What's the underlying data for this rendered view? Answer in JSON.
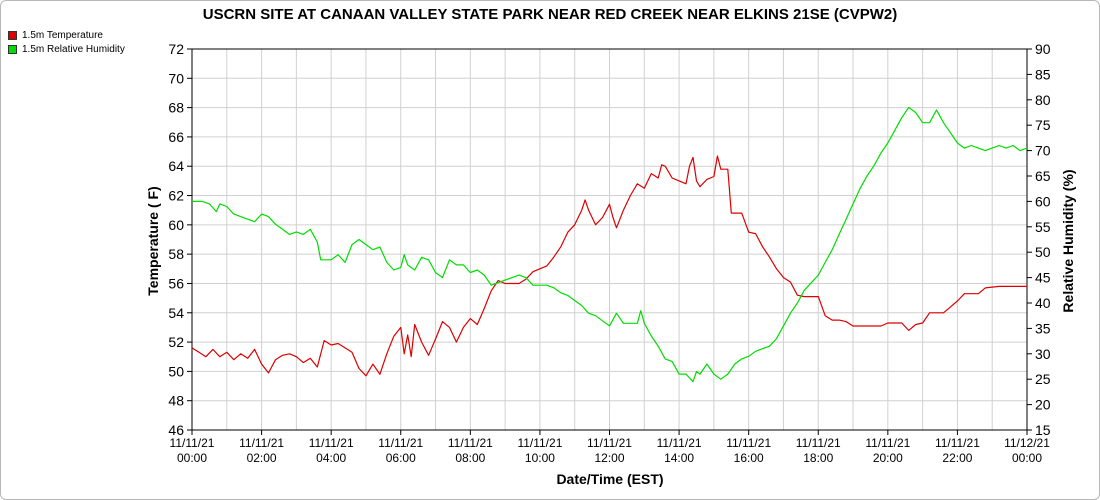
{
  "chart_data": {
    "type": "line",
    "title": "USCRN SITE AT CANAAN VALLEY STATE PARK NEAR RED CREEK NEAR ELKINS 21SE (CVPW2)",
    "xlabel": "Date/Time (EST)",
    "ylabel_left": "Temperature ( F)",
    "ylabel_right": "Relative Humidity (%)",
    "ylim_left": [
      46,
      72
    ],
    "ylim_right": [
      15,
      90
    ],
    "yticks_left": [
      46,
      48,
      50,
      52,
      54,
      56,
      58,
      60,
      62,
      64,
      66,
      68,
      70,
      72
    ],
    "yticks_right": [
      15,
      20,
      25,
      30,
      35,
      40,
      45,
      50,
      55,
      60,
      65,
      70,
      75,
      80,
      85,
      90
    ],
    "xlim_hours": [
      0,
      24
    ],
    "x_ticks": [
      {
        "hour": 0,
        "date": "11/11/21",
        "time": "00:00"
      },
      {
        "hour": 2,
        "date": "11/11/21",
        "time": "02:00"
      },
      {
        "hour": 4,
        "date": "11/11/21",
        "time": "04:00"
      },
      {
        "hour": 6,
        "date": "11/11/21",
        "time": "06:00"
      },
      {
        "hour": 8,
        "date": "11/11/21",
        "time": "08:00"
      },
      {
        "hour": 10,
        "date": "11/11/21",
        "time": "10:00"
      },
      {
        "hour": 12,
        "date": "11/11/21",
        "time": "12:00"
      },
      {
        "hour": 14,
        "date": "11/11/21",
        "time": "14:00"
      },
      {
        "hour": 16,
        "date": "11/11/21",
        "time": "16:00"
      },
      {
        "hour": 18,
        "date": "11/11/21",
        "time": "18:00"
      },
      {
        "hour": 20,
        "date": "11/11/21",
        "time": "20:00"
      },
      {
        "hour": 22,
        "date": "11/11/21",
        "time": "22:00"
      },
      {
        "hour": 24,
        "date": "11/12/21",
        "time": "00:00"
      }
    ],
    "grid": true,
    "legend_position": "top-left",
    "series": [
      {
        "name": "1.5m Temperature",
        "axis": "left",
        "color": "#dd0000",
        "points": [
          [
            0.0,
            51.6
          ],
          [
            0.2,
            51.3
          ],
          [
            0.4,
            51.0
          ],
          [
            0.6,
            51.5
          ],
          [
            0.8,
            51.0
          ],
          [
            1.0,
            51.3
          ],
          [
            1.2,
            50.8
          ],
          [
            1.4,
            51.2
          ],
          [
            1.6,
            50.9
          ],
          [
            1.8,
            51.5
          ],
          [
            2.0,
            50.5
          ],
          [
            2.2,
            49.9
          ],
          [
            2.4,
            50.8
          ],
          [
            2.6,
            51.1
          ],
          [
            2.8,
            51.2
          ],
          [
            3.0,
            51.0
          ],
          [
            3.2,
            50.6
          ],
          [
            3.4,
            50.9
          ],
          [
            3.6,
            50.3
          ],
          [
            3.8,
            52.1
          ],
          [
            4.0,
            51.8
          ],
          [
            4.2,
            51.9
          ],
          [
            4.4,
            51.6
          ],
          [
            4.6,
            51.3
          ],
          [
            4.8,
            50.2
          ],
          [
            5.0,
            49.7
          ],
          [
            5.2,
            50.5
          ],
          [
            5.4,
            49.8
          ],
          [
            5.6,
            51.2
          ],
          [
            5.8,
            52.4
          ],
          [
            6.0,
            53.0
          ],
          [
            6.1,
            51.2
          ],
          [
            6.2,
            52.5
          ],
          [
            6.3,
            51.0
          ],
          [
            6.4,
            53.2
          ],
          [
            6.6,
            52.0
          ],
          [
            6.8,
            51.1
          ],
          [
            7.0,
            52.2
          ],
          [
            7.2,
            53.4
          ],
          [
            7.4,
            53.0
          ],
          [
            7.6,
            52.0
          ],
          [
            7.8,
            53.0
          ],
          [
            8.0,
            53.6
          ],
          [
            8.2,
            53.2
          ],
          [
            8.4,
            54.3
          ],
          [
            8.6,
            55.5
          ],
          [
            8.8,
            56.2
          ],
          [
            9.0,
            56.0
          ],
          [
            9.2,
            56.0
          ],
          [
            9.4,
            56.0
          ],
          [
            9.6,
            56.3
          ],
          [
            9.8,
            56.8
          ],
          [
            10.0,
            57.0
          ],
          [
            10.2,
            57.2
          ],
          [
            10.4,
            57.8
          ],
          [
            10.6,
            58.5
          ],
          [
            10.8,
            59.5
          ],
          [
            11.0,
            60.0
          ],
          [
            11.2,
            61.0
          ],
          [
            11.3,
            61.7
          ],
          [
            11.4,
            61.0
          ],
          [
            11.6,
            60.0
          ],
          [
            11.8,
            60.5
          ],
          [
            12.0,
            61.4
          ],
          [
            12.1,
            60.5
          ],
          [
            12.2,
            59.8
          ],
          [
            12.4,
            61.0
          ],
          [
            12.6,
            62.0
          ],
          [
            12.8,
            62.8
          ],
          [
            13.0,
            62.5
          ],
          [
            13.2,
            63.5
          ],
          [
            13.4,
            63.2
          ],
          [
            13.5,
            64.1
          ],
          [
            13.6,
            64.0
          ],
          [
            13.8,
            63.2
          ],
          [
            14.0,
            63.0
          ],
          [
            14.2,
            62.8
          ],
          [
            14.3,
            64.0
          ],
          [
            14.4,
            64.6
          ],
          [
            14.5,
            63.0
          ],
          [
            14.6,
            62.6
          ],
          [
            14.8,
            63.1
          ],
          [
            15.0,
            63.3
          ],
          [
            15.1,
            64.7
          ],
          [
            15.2,
            63.8
          ],
          [
            15.4,
            63.8
          ],
          [
            15.5,
            60.8
          ],
          [
            15.8,
            60.8
          ],
          [
            16.0,
            59.5
          ],
          [
            16.2,
            59.4
          ],
          [
            16.4,
            58.5
          ],
          [
            16.6,
            57.8
          ],
          [
            16.8,
            57.0
          ],
          [
            17.0,
            56.4
          ],
          [
            17.2,
            56.1
          ],
          [
            17.4,
            55.2
          ],
          [
            17.6,
            55.1
          ],
          [
            18.0,
            55.1
          ],
          [
            18.2,
            53.8
          ],
          [
            18.4,
            53.5
          ],
          [
            18.6,
            53.5
          ],
          [
            18.8,
            53.4
          ],
          [
            19.0,
            53.1
          ],
          [
            19.4,
            53.1
          ],
          [
            19.8,
            53.1
          ],
          [
            20.0,
            53.3
          ],
          [
            20.4,
            53.3
          ],
          [
            20.6,
            52.8
          ],
          [
            20.8,
            53.2
          ],
          [
            21.0,
            53.3
          ],
          [
            21.2,
            54.0
          ],
          [
            21.4,
            54.0
          ],
          [
            21.6,
            54.0
          ],
          [
            21.8,
            54.4
          ],
          [
            22.0,
            54.8
          ],
          [
            22.2,
            55.3
          ],
          [
            22.6,
            55.3
          ],
          [
            22.8,
            55.7
          ],
          [
            23.2,
            55.8
          ],
          [
            24.0,
            55.8
          ]
        ]
      },
      {
        "name": "1.5m Relative Humidity",
        "axis": "right",
        "color": "#00dd00",
        "points": [
          [
            0.0,
            60.0
          ],
          [
            0.3,
            60.0
          ],
          [
            0.5,
            59.5
          ],
          [
            0.7,
            58.0
          ],
          [
            0.8,
            59.5
          ],
          [
            1.0,
            59.0
          ],
          [
            1.2,
            57.5
          ],
          [
            1.4,
            57.0
          ],
          [
            1.6,
            56.5
          ],
          [
            1.8,
            56.0
          ],
          [
            2.0,
            57.5
          ],
          [
            2.2,
            57.0
          ],
          [
            2.4,
            55.5
          ],
          [
            2.6,
            54.5
          ],
          [
            2.8,
            53.5
          ],
          [
            3.0,
            54.0
          ],
          [
            3.2,
            53.5
          ],
          [
            3.4,
            54.5
          ],
          [
            3.6,
            52.0
          ],
          [
            3.7,
            48.5
          ],
          [
            4.0,
            48.5
          ],
          [
            4.2,
            49.5
          ],
          [
            4.4,
            48.0
          ],
          [
            4.6,
            51.5
          ],
          [
            4.8,
            52.5
          ],
          [
            5.0,
            51.5
          ],
          [
            5.2,
            50.5
          ],
          [
            5.4,
            51.0
          ],
          [
            5.6,
            48.0
          ],
          [
            5.8,
            46.5
          ],
          [
            6.0,
            47.0
          ],
          [
            6.1,
            49.5
          ],
          [
            6.2,
            47.5
          ],
          [
            6.4,
            46.5
          ],
          [
            6.6,
            49.0
          ],
          [
            6.8,
            48.5
          ],
          [
            7.0,
            46.0
          ],
          [
            7.2,
            45.0
          ],
          [
            7.4,
            48.5
          ],
          [
            7.6,
            47.5
          ],
          [
            7.8,
            47.5
          ],
          [
            8.0,
            46.0
          ],
          [
            8.2,
            46.5
          ],
          [
            8.4,
            45.5
          ],
          [
            8.6,
            43.5
          ],
          [
            8.8,
            44.0
          ],
          [
            9.0,
            44.5
          ],
          [
            9.2,
            45.0
          ],
          [
            9.4,
            45.5
          ],
          [
            9.6,
            45.0
          ],
          [
            9.8,
            43.5
          ],
          [
            10.0,
            43.5
          ],
          [
            10.2,
            43.5
          ],
          [
            10.4,
            43.0
          ],
          [
            10.6,
            42.0
          ],
          [
            10.8,
            41.5
          ],
          [
            11.0,
            40.5
          ],
          [
            11.2,
            39.5
          ],
          [
            11.4,
            38.0
          ],
          [
            11.6,
            37.5
          ],
          [
            11.8,
            36.5
          ],
          [
            12.0,
            35.5
          ],
          [
            12.2,
            38.0
          ],
          [
            12.4,
            36.0
          ],
          [
            12.6,
            36.0
          ],
          [
            12.8,
            36.0
          ],
          [
            12.9,
            38.5
          ],
          [
            13.0,
            36.0
          ],
          [
            13.2,
            33.5
          ],
          [
            13.4,
            31.5
          ],
          [
            13.6,
            29.0
          ],
          [
            13.8,
            28.5
          ],
          [
            14.0,
            26.0
          ],
          [
            14.2,
            26.0
          ],
          [
            14.4,
            24.5
          ],
          [
            14.5,
            26.5
          ],
          [
            14.6,
            26.0
          ],
          [
            14.8,
            28.0
          ],
          [
            15.0,
            26.0
          ],
          [
            15.2,
            25.0
          ],
          [
            15.4,
            26.0
          ],
          [
            15.6,
            28.0
          ],
          [
            15.8,
            29.0
          ],
          [
            16.0,
            29.5
          ],
          [
            16.2,
            30.5
          ],
          [
            16.4,
            31.0
          ],
          [
            16.6,
            31.5
          ],
          [
            16.8,
            33.0
          ],
          [
            17.0,
            35.5
          ],
          [
            17.2,
            38.0
          ],
          [
            17.4,
            40.0
          ],
          [
            17.6,
            42.5
          ],
          [
            17.8,
            44.0
          ],
          [
            18.0,
            45.5
          ],
          [
            18.2,
            48.0
          ],
          [
            18.4,
            50.5
          ],
          [
            18.6,
            53.5
          ],
          [
            18.8,
            56.5
          ],
          [
            19.0,
            59.5
          ],
          [
            19.2,
            62.5
          ],
          [
            19.4,
            65.0
          ],
          [
            19.6,
            67.0
          ],
          [
            19.8,
            69.5
          ],
          [
            20.0,
            71.5
          ],
          [
            20.2,
            74.0
          ],
          [
            20.4,
            76.5
          ],
          [
            20.6,
            78.5
          ],
          [
            20.8,
            77.5
          ],
          [
            21.0,
            75.5
          ],
          [
            21.2,
            75.5
          ],
          [
            21.4,
            78.0
          ],
          [
            21.6,
            75.5
          ],
          [
            21.8,
            73.5
          ],
          [
            22.0,
            71.5
          ],
          [
            22.2,
            70.5
          ],
          [
            22.4,
            71.0
          ],
          [
            22.6,
            70.5
          ],
          [
            22.8,
            70.0
          ],
          [
            23.0,
            70.5
          ],
          [
            23.2,
            71.0
          ],
          [
            23.4,
            70.5
          ],
          [
            23.6,
            71.0
          ],
          [
            23.8,
            70.0
          ],
          [
            24.0,
            70.5
          ]
        ]
      }
    ]
  }
}
